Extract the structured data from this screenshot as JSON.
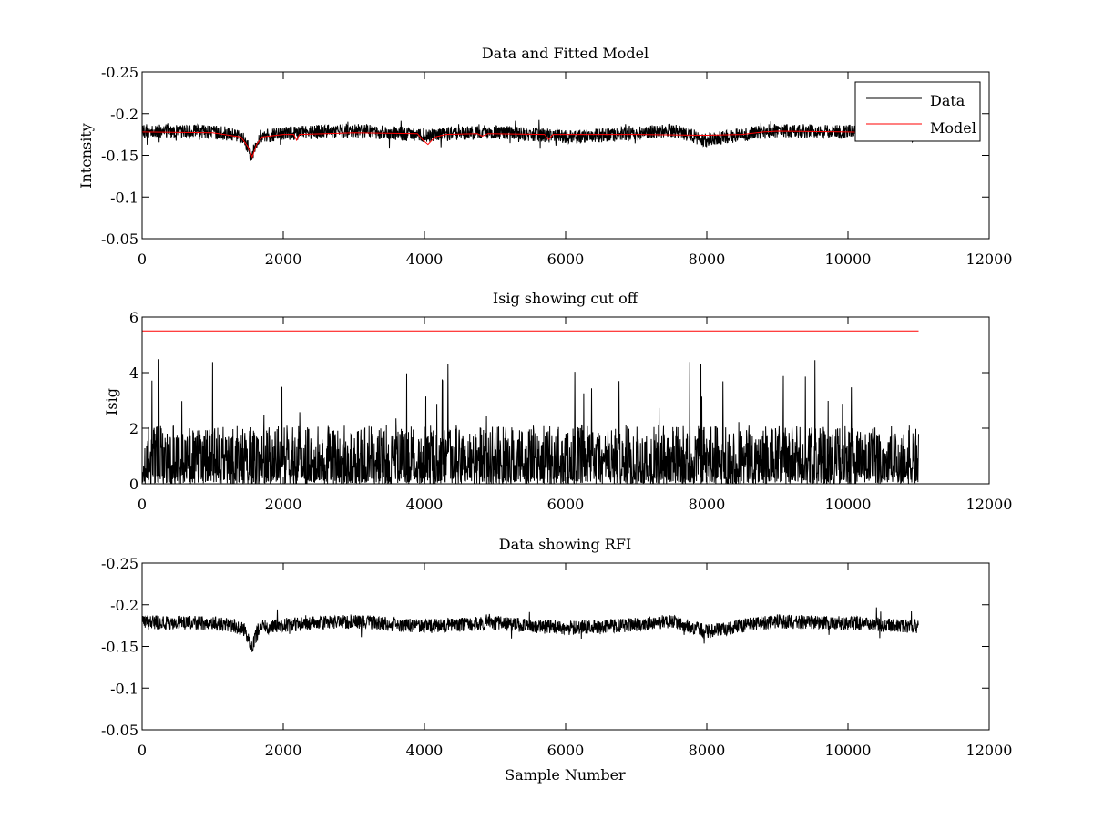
{
  "figure": {
    "background": "#ffffff"
  },
  "chart_data": [
    {
      "type": "line",
      "title": "Data and Fitted Model",
      "xlabel": "",
      "ylabel": "Intensity",
      "xlim": [
        0,
        12000
      ],
      "ylim": [
        -0.25,
        -0.05
      ],
      "y_reversed": true,
      "xticks": [
        0,
        2000,
        4000,
        6000,
        8000,
        10000,
        12000
      ],
      "yticks": [
        -0.05,
        -0.1,
        -0.15,
        -0.2,
        -0.25
      ],
      "xtick_labels": [
        "0",
        "2000",
        "4000",
        "6000",
        "8000",
        "10000",
        "12000"
      ],
      "ytick_labels": [
        "-0.05",
        "-0.1",
        "-0.15",
        "-0.2",
        "-0.25"
      ],
      "grid": false,
      "legend": {
        "placement": "top-right",
        "entries": [
          {
            "label": "Data",
            "color": "#000000"
          },
          {
            "label": "Model",
            "color": "#ff0000"
          }
        ]
      },
      "series": [
        {
          "name": "Data",
          "color": "#000000",
          "x_range": [
            0,
            11000
          ],
          "baseline": [
            [
              0,
              -0.179
            ],
            [
              1000,
              -0.178
            ],
            [
              1300,
              -0.175
            ],
            [
              1450,
              -0.17
            ],
            [
              1550,
              -0.148
            ],
            [
              1650,
              -0.172
            ],
            [
              2000,
              -0.176
            ],
            [
              3000,
              -0.18
            ],
            [
              4000,
              -0.174
            ],
            [
              5000,
              -0.178
            ],
            [
              6000,
              -0.172
            ],
            [
              7000,
              -0.176
            ],
            [
              7500,
              -0.18
            ],
            [
              8000,
              -0.168
            ],
            [
              8600,
              -0.176
            ],
            [
              9000,
              -0.18
            ],
            [
              10000,
              -0.178
            ],
            [
              11000,
              -0.174
            ]
          ],
          "noise_amplitude": 0.0085,
          "spike_extreme": [
            -0.205,
            -0.14
          ]
        },
        {
          "name": "Model",
          "color": "#ff0000",
          "points": [
            [
              0,
              -0.178
            ],
            [
              1000,
              -0.177
            ],
            [
              1400,
              -0.172
            ],
            [
              1500,
              -0.16
            ],
            [
              1560,
              -0.148
            ],
            [
              1620,
              -0.163
            ],
            [
              1700,
              -0.172
            ],
            [
              2000,
              -0.175
            ],
            [
              2150,
              -0.175
            ],
            [
              2190,
              -0.168
            ],
            [
              2230,
              -0.175
            ],
            [
              3000,
              -0.177
            ],
            [
              3900,
              -0.176
            ],
            [
              3980,
              -0.168
            ],
            [
              4050,
              -0.163
            ],
            [
              4150,
              -0.172
            ],
            [
              4300,
              -0.175
            ],
            [
              4750,
              -0.176
            ],
            [
              4820,
              -0.173
            ],
            [
              4900,
              -0.176
            ],
            [
              5700,
              -0.175
            ],
            [
              5760,
              -0.169
            ],
            [
              5820,
              -0.175
            ],
            [
              7000,
              -0.175
            ],
            [
              8000,
              -0.174
            ],
            [
              8500,
              -0.175
            ],
            [
              8800,
              -0.178
            ],
            [
              9000,
              -0.179
            ],
            [
              10000,
              -0.178
            ],
            [
              11000,
              -0.176
            ]
          ]
        }
      ]
    },
    {
      "type": "line",
      "title": "Isig showing cut off",
      "xlabel": "",
      "ylabel": "Isig",
      "xlim": [
        0,
        12000
      ],
      "ylim": [
        0,
        6
      ],
      "xticks": [
        0,
        2000,
        4000,
        6000,
        8000,
        10000,
        12000
      ],
      "yticks": [
        0,
        2,
        4,
        6
      ],
      "xtick_labels": [
        "0",
        "2000",
        "4000",
        "6000",
        "8000",
        "10000",
        "12000"
      ],
      "ytick_labels": [
        "0",
        "2",
        "4",
        "6"
      ],
      "grid": false,
      "series": [
        {
          "color": "#000000",
          "x_range": [
            0,
            11000
          ],
          "typical_max": 2.0,
          "peak_max": 4.5
        },
        {
          "color": "#ff0000",
          "points": [
            [
              0,
              5.5
            ],
            [
              11000,
              5.5
            ]
          ]
        }
      ]
    },
    {
      "type": "line",
      "title": "Data showing RFI",
      "xlabel": "Sample Number",
      "ylabel": "",
      "xlim": [
        0,
        12000
      ],
      "ylim": [
        -0.25,
        -0.05
      ],
      "y_reversed": true,
      "xticks": [
        0,
        2000,
        4000,
        6000,
        8000,
        10000,
        12000
      ],
      "yticks": [
        -0.05,
        -0.1,
        -0.15,
        -0.2,
        -0.25
      ],
      "xtick_labels": [
        "0",
        "2000",
        "4000",
        "6000",
        "8000",
        "10000",
        "12000"
      ],
      "ytick_labels": [
        "-0.05",
        "-0.1",
        "-0.15",
        "-0.2",
        "-0.25"
      ],
      "grid": false,
      "series": [
        {
          "color": "#000000",
          "x_range": [
            0,
            11000
          ],
          "baseline": [
            [
              0,
              -0.179
            ],
            [
              1000,
              -0.178
            ],
            [
              1300,
              -0.175
            ],
            [
              1450,
              -0.17
            ],
            [
              1550,
              -0.148
            ],
            [
              1650,
              -0.172
            ],
            [
              2000,
              -0.176
            ],
            [
              3000,
              -0.18
            ],
            [
              4000,
              -0.174
            ],
            [
              5000,
              -0.178
            ],
            [
              6000,
              -0.172
            ],
            [
              7000,
              -0.176
            ],
            [
              7500,
              -0.18
            ],
            [
              8000,
              -0.168
            ],
            [
              8600,
              -0.176
            ],
            [
              9000,
              -0.18
            ],
            [
              10000,
              -0.178
            ],
            [
              11000,
              -0.174
            ]
          ],
          "noise_amplitude": 0.0085,
          "spike_extreme": [
            -0.205,
            -0.14
          ]
        }
      ]
    }
  ]
}
